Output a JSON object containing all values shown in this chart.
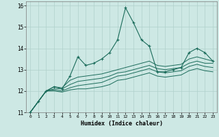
{
  "xlabel": "Humidex (Indice chaleur)",
  "ylabel": "",
  "bg_color": "#cde8e4",
  "grid_color": "#afd0cb",
  "line_color": "#1a6b5a",
  "xlim": [
    -0.5,
    23.5
  ],
  "ylim": [
    11,
    16.2
  ],
  "xticks": [
    0,
    1,
    2,
    3,
    4,
    5,
    6,
    7,
    8,
    9,
    10,
    11,
    12,
    13,
    14,
    15,
    16,
    17,
    18,
    19,
    20,
    21,
    22,
    23
  ],
  "yticks": [
    11,
    12,
    13,
    14,
    15,
    16
  ],
  "series": [
    [
      11.0,
      11.5,
      12.0,
      12.2,
      12.1,
      12.7,
      13.6,
      13.2,
      13.3,
      13.5,
      13.8,
      14.4,
      15.9,
      15.2,
      14.4,
      14.1,
      12.9,
      12.9,
      13.0,
      13.1,
      13.8,
      14.0,
      13.8,
      13.4
    ],
    [
      11.0,
      11.5,
      12.0,
      12.2,
      12.15,
      12.5,
      12.65,
      12.7,
      12.75,
      12.8,
      12.9,
      13.0,
      13.1,
      13.2,
      13.3,
      13.4,
      13.2,
      13.15,
      13.2,
      13.25,
      13.5,
      13.6,
      13.5,
      13.4
    ],
    [
      11.0,
      11.5,
      12.0,
      12.1,
      12.1,
      12.3,
      12.45,
      12.5,
      12.55,
      12.6,
      12.7,
      12.85,
      12.9,
      13.0,
      13.1,
      13.2,
      13.05,
      13.0,
      13.05,
      13.1,
      13.3,
      13.4,
      13.3,
      13.3
    ],
    [
      11.0,
      11.5,
      12.0,
      12.05,
      12.0,
      12.15,
      12.25,
      12.3,
      12.35,
      12.4,
      12.55,
      12.7,
      12.75,
      12.85,
      12.95,
      13.05,
      12.9,
      12.85,
      12.9,
      12.95,
      13.15,
      13.25,
      13.15,
      13.1
    ],
    [
      11.0,
      11.5,
      12.0,
      12.0,
      11.95,
      12.05,
      12.1,
      12.1,
      12.15,
      12.2,
      12.3,
      12.5,
      12.55,
      12.65,
      12.75,
      12.85,
      12.7,
      12.65,
      12.7,
      12.75,
      12.95,
      13.05,
      12.95,
      12.9
    ]
  ]
}
